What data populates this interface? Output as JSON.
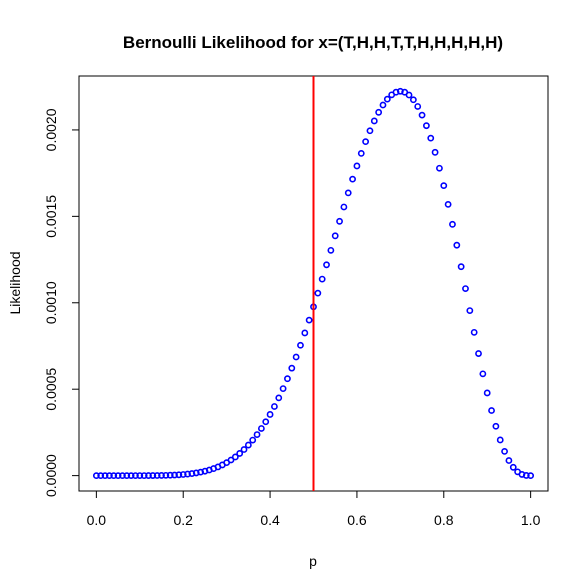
{
  "chart_data": {
    "type": "scatter",
    "title": "Bernoulli Likelihood for x=(T,H,H,T,T,H,H,H,H,H)",
    "xlabel": "p",
    "ylabel": "Likelihood",
    "xlim": [
      -0.04,
      1.04
    ],
    "ylim": [
      -8.9e-05,
      0.002312
    ],
    "x_ticks": [
      0.0,
      0.2,
      0.4,
      0.6,
      0.8,
      1.0
    ],
    "x_tick_labels": [
      "0.0",
      "0.2",
      "0.4",
      "0.6",
      "0.8",
      "1.0"
    ],
    "y_ticks": [
      0.0,
      0.0005,
      0.001,
      0.0015,
      0.002
    ],
    "y_tick_labels": [
      "0.0000",
      "0.0005",
      "0.0010",
      "0.0015",
      "0.0020"
    ],
    "grid": false,
    "legend": "none",
    "series": [
      {
        "marker": "open-circle",
        "color": "#0000ff",
        "x_start": 0.0,
        "x_end": 1.0,
        "x_step": 0.01,
        "formula": "p^7 * (1-p)^3"
      }
    ],
    "reference_line": {
      "x": 0.5,
      "color": "#ff0000"
    },
    "colors": {
      "points": "#0000ff",
      "vline": "#ff0000",
      "axis": "#000000"
    }
  }
}
